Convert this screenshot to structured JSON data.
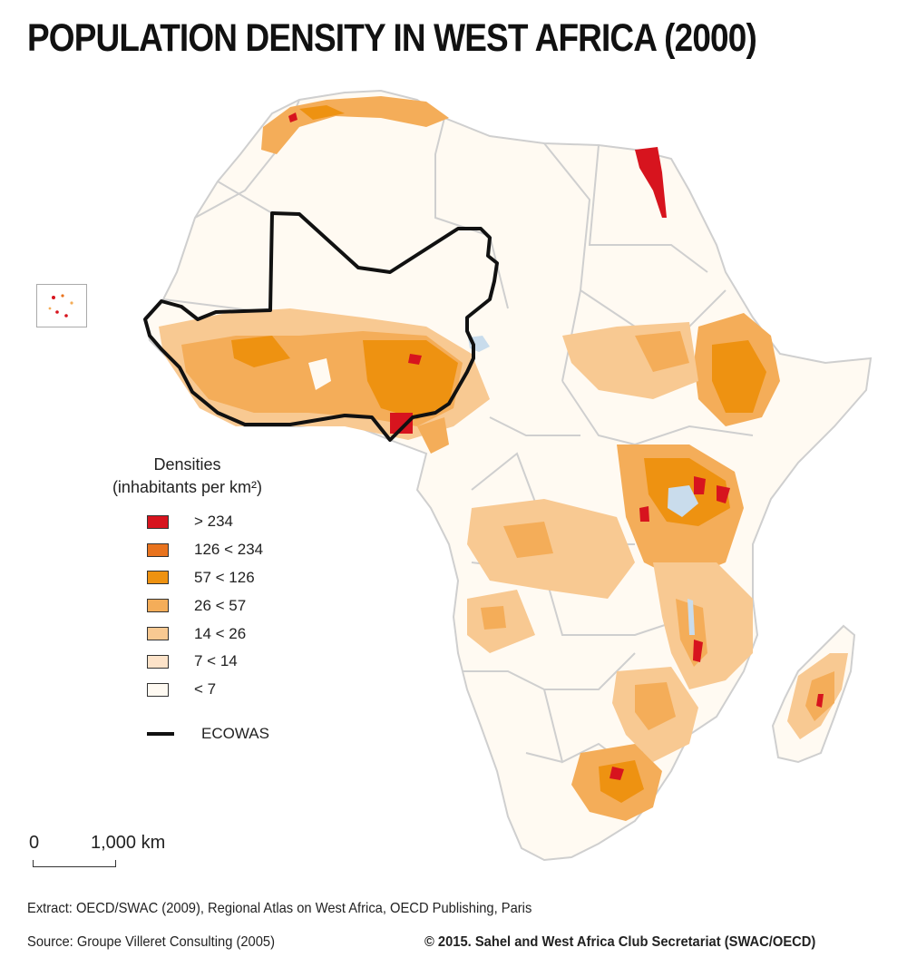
{
  "title": "POPULATION DENSITY IN WEST AFRICA (2000)",
  "legend": {
    "title_line1": "Densities",
    "title_line2": "(inhabitants per km²)",
    "items": [
      {
        "label": "> 234",
        "color": "#d7141e"
      },
      {
        "label": "126 < 234",
        "color": "#e8731e"
      },
      {
        "label": "57 < 126",
        "color": "#ee9211"
      },
      {
        "label": "26 < 57",
        "color": "#f4ad59"
      },
      {
        "label": "14 < 26",
        "color": "#f8c992"
      },
      {
        "label": "7 < 14",
        "color": "#fde3c9"
      },
      {
        "label": "< 7",
        "color": "#fffaf2"
      }
    ],
    "ecowas_label": "ECOWAS"
  },
  "scale": {
    "zero": "0",
    "distance": "1,000 km"
  },
  "footer": {
    "extract": "Extract: OECD/SWAC (2009), Regional Atlas on West Africa, OECD Publishing, Paris",
    "source": "Source: Groupe Villeret Consulting (2005)",
    "copyright": "© 2015. Sahel and West Africa Club Secretariat (SWAC/OECD)"
  },
  "colors": {
    "land": "#fffaf2",
    "borders": "#cfcfcf",
    "ecowas_outline": "#111111",
    "water": "#c9dcec"
  }
}
